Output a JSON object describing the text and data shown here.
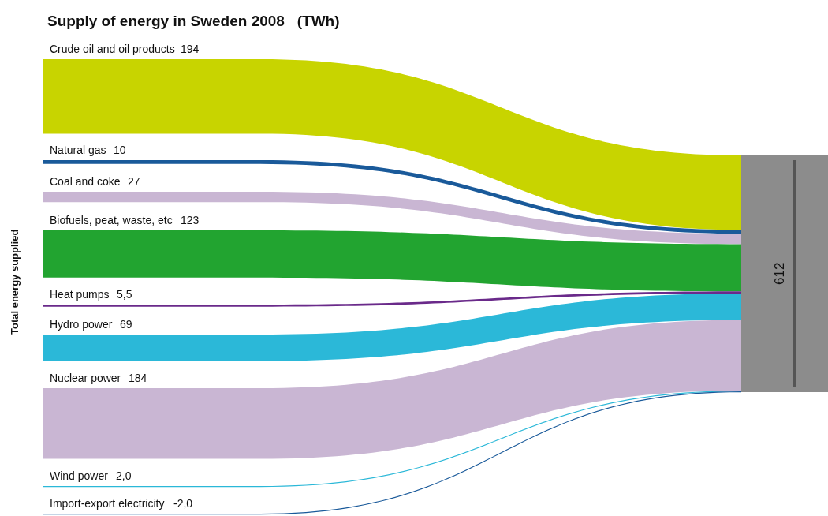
{
  "chart_data": {
    "type": "other",
    "title": "Supply of energy in Sweden 2008   (TWh)",
    "ylabel": "Total energy supplied",
    "categories": [
      "Crude oil and oil products",
      "Natural gas",
      "Coal and coke",
      "Biofuels, peat, waste, etc",
      "Heat pumps",
      "Hydro power",
      "Nuclear power",
      "Wind power",
      "Import-export electricity"
    ],
    "values": [
      194,
      10,
      27,
      123,
      5.5,
      69,
      184,
      2.0,
      -2.0
    ],
    "value_labels": [
      "194",
      "10",
      "27",
      "123",
      "5,5",
      "69",
      "184",
      "2,0",
      "-2,0"
    ],
    "colors": [
      "#c8d400",
      "#1a5a9a",
      "#c9b6d3",
      "#22a430",
      "#6a2a8a",
      "#2bb8d8",
      "#c9b6d3",
      "#2bb8d8",
      "#1a5a9a"
    ],
    "totals": [
      "612"
    ]
  }
}
